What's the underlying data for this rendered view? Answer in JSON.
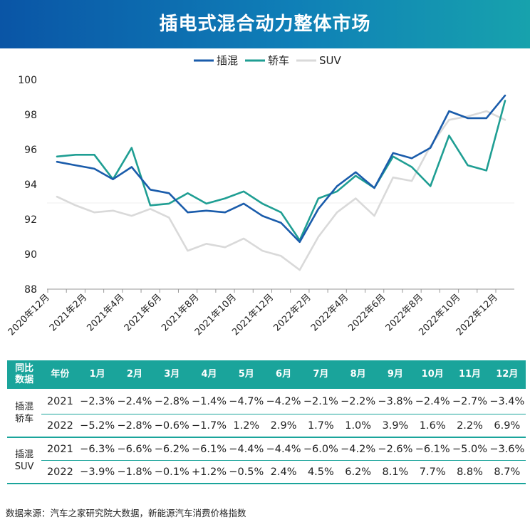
{
  "title": "插电式混合动力整体市场",
  "source": "数据来源：汽车之家研究院大数据，新能源汽车消费价格指数",
  "colors": {
    "phev": "#1a5cab",
    "sedan": "#1f9e93",
    "suv": "#d9d9d9"
  },
  "chart_data": {
    "type": "line",
    "title": "插电式混合动力整体市场",
    "xlabel": "",
    "ylabel": "",
    "ylim": [
      88,
      100
    ],
    "yticks": [
      88,
      90,
      92,
      94,
      96,
      98,
      100
    ],
    "x_tick_labels": [
      "2020年12月",
      "2021年2月",
      "2021年4月",
      "2021年6月",
      "2021年8月",
      "2021年10月",
      "2021年12月",
      "2022年2月",
      "2022年4月",
      "2022年6月",
      "2022年8月",
      "2022年10月",
      "2022年12月"
    ],
    "legend_position": "top-center",
    "series": [
      {
        "name": "插混",
        "color": "#1a5cab",
        "values": [
          95.3,
          95.1,
          94.9,
          94.3,
          95.0,
          93.7,
          93.5,
          92.4,
          92.5,
          92.4,
          92.9,
          92.2,
          91.8,
          90.7,
          92.6,
          93.9,
          94.7,
          93.8,
          95.8,
          95.5,
          96.1,
          98.2,
          97.8,
          97.8,
          99.1
        ]
      },
      {
        "name": "轿车",
        "color": "#1f9e93",
        "values": [
          95.6,
          95.7,
          95.7,
          94.3,
          96.1,
          92.8,
          92.9,
          93.5,
          92.9,
          93.2,
          93.6,
          92.9,
          92.4,
          90.8,
          93.2,
          93.6,
          94.5,
          93.8,
          95.6,
          95.0,
          93.9,
          96.8,
          95.1,
          94.8,
          98.8
        ]
      },
      {
        "name": "SUV",
        "color": "#d9d9d9",
        "values": [
          93.3,
          92.8,
          92.4,
          92.5,
          92.2,
          92.6,
          92.1,
          90.2,
          90.6,
          90.4,
          90.9,
          90.2,
          89.9,
          89.1,
          91.0,
          92.4,
          93.2,
          92.2,
          94.4,
          94.2,
          96.2,
          97.7,
          97.9,
          98.2,
          97.7
        ]
      }
    ]
  },
  "table": {
    "header": {
      "group": "同比\n数据",
      "year": "年份",
      "months": [
        "1月",
        "2月",
        "3月",
        "4月",
        "5月",
        "6月",
        "7月",
        "8月",
        "9月",
        "10月",
        "11月",
        "12月"
      ]
    },
    "groups": [
      {
        "label": "插混\n轿车",
        "rows": [
          {
            "year": "2021",
            "values": [
              "−2.3%",
              "−2.4%",
              "−2.8%",
              "−1.4%",
              "−4.7%",
              "−4.2%",
              "−2.1%",
              "−2.2%",
              "−3.8%",
              "−2.4%",
              "−2.7%",
              "−3.4%"
            ]
          },
          {
            "year": "2022",
            "values": [
              "−5.2%",
              "−2.8%",
              "−0.6%",
              "−1.7%",
              "1.2%",
              "2.9%",
              "1.7%",
              "1.0%",
              "3.9%",
              "1.6%",
              "2.2%",
              "6.9%"
            ]
          }
        ]
      },
      {
        "label": "插混\nSUV",
        "rows": [
          {
            "year": "2021",
            "values": [
              "−6.3%",
              "−6.6%",
              "−6.2%",
              "−6.1%",
              "−4.4%",
              "−4.4%",
              "−6.0%",
              "−4.2%",
              "−2.6%",
              "−6.1%",
              "−5.0%",
              "−3.6%"
            ]
          },
          {
            "year": "2022",
            "values": [
              "−3.9%",
              "−1.8%",
              "−0.1%",
              "+1.2%",
              "−0.5%",
              "2.4%",
              "4.5%",
              "6.2%",
              "8.1%",
              "7.7%",
              "8.8%",
              "8.7%"
            ]
          }
        ]
      }
    ]
  }
}
